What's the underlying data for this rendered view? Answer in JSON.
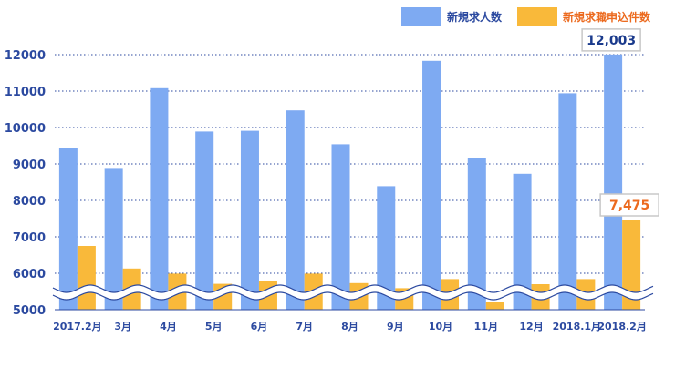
{
  "chart_data": {
    "type": "bar",
    "categories": [
      "2017.2月",
      "3月",
      "4月",
      "5月",
      "6月",
      "7月",
      "8月",
      "9月",
      "10月",
      "11月",
      "12月",
      "2018.1月",
      "2018.2月"
    ],
    "series": [
      {
        "name": "新規求人数",
        "color": "#7eaaf2",
        "values": [
          9430,
          8890,
          11080,
          9890,
          9910,
          10470,
          9540,
          8390,
          11830,
          9160,
          8730,
          10940,
          12003
        ]
      },
      {
        "name": "新規求職申込件数",
        "color": "#f9b93a",
        "values": [
          6750,
          6130,
          5990,
          5710,
          5800,
          5990,
          5730,
          5590,
          5840,
          5210,
          5700,
          5840,
          7475
        ]
      }
    ],
    "y_ticks": [
      "12000",
      "11000",
      "10000",
      "9000",
      "8000",
      "7000",
      "6000",
      "5000"
    ],
    "ylim": [
      5000,
      12000
    ],
    "axis_break": true,
    "grid": "dotted horizontal",
    "legend_position": "top-right",
    "callouts": [
      {
        "series": 0,
        "index": 12,
        "text": "12,003",
        "color": "#1a3a8c"
      },
      {
        "series": 1,
        "index": 12,
        "text": "7,475",
        "color": "#ec6a1e"
      }
    ],
    "axis_label_color": "#2c4aa0"
  }
}
